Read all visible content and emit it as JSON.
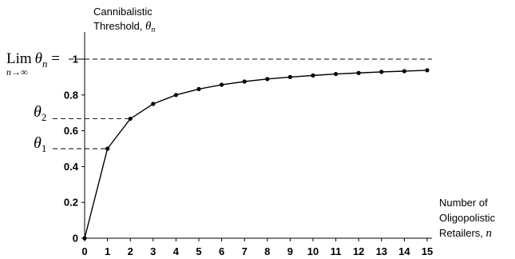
{
  "chart_data": {
    "type": "line",
    "x": [
      0,
      1,
      2,
      3,
      4,
      5,
      6,
      7,
      8,
      9,
      10,
      11,
      12,
      13,
      14,
      15
    ],
    "series": [
      {
        "values": [
          0,
          0.5,
          0.667,
          0.75,
          0.8,
          0.833,
          0.857,
          0.875,
          0.889,
          0.9,
          0.909,
          0.917,
          0.923,
          0.929,
          0.933,
          0.938
        ]
      }
    ],
    "xlim": [
      0,
      15
    ],
    "ylim": [
      0,
      1
    ],
    "x_ticks": [
      "0",
      "1",
      "2",
      "3",
      "4",
      "5",
      "6",
      "7",
      "8",
      "9",
      "10",
      "11",
      "12",
      "13",
      "14",
      "15"
    ],
    "y_ticks": [
      "0",
      "0.2",
      "0.4",
      "0.6",
      "0.8",
      "1"
    ],
    "ylabel": {
      "line1": "Cannibalistic",
      "line2": "Threshold, ",
      "symbol": "θ",
      "subscript": "n"
    },
    "xlabel": {
      "line1": "Number of",
      "line2": "Oligopolistic",
      "line3": "Retailers, ",
      "symbol": "n"
    },
    "grid": false,
    "annotations": [
      {
        "kind": "limit",
        "prefix": "Lim",
        "sub": "n→∞",
        "symbol": "θ",
        "symbol_sub": "n",
        "suffix": " =",
        "y": 1
      },
      {
        "kind": "theta",
        "symbol": "θ",
        "symbol_sub": "2",
        "y": 0.667
      },
      {
        "kind": "theta",
        "symbol": "θ",
        "symbol_sub": "1",
        "y": 0.5
      }
    ]
  }
}
